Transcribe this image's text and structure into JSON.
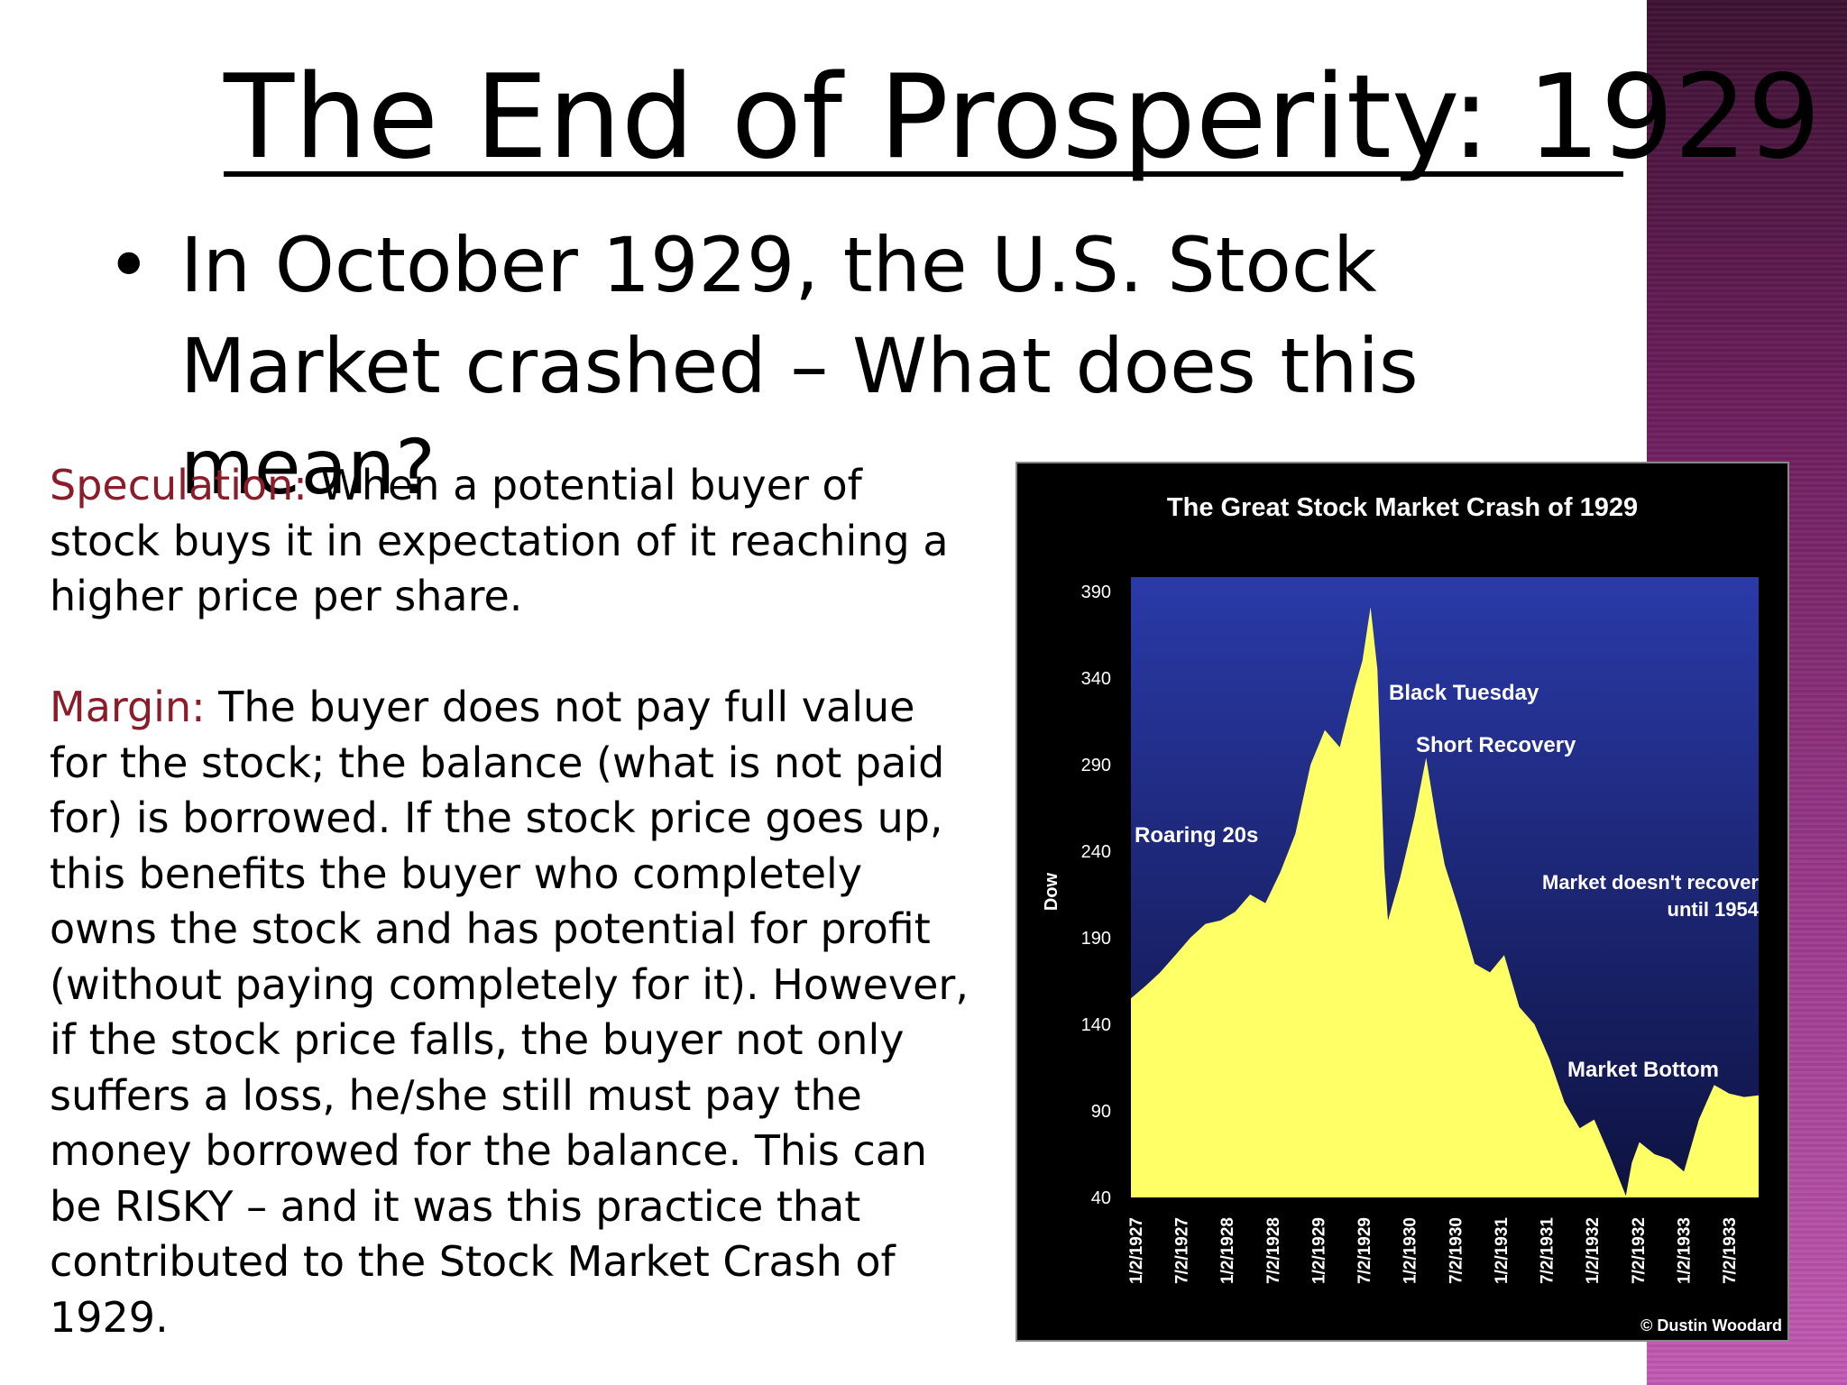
{
  "slide": {
    "title": "The End of Prosperity: 1929",
    "bullet_marker": "•",
    "bullet_text": "In October 1929, the U.S. Stock Market crashed – What does this mean?"
  },
  "definitions": {
    "speculation_term": "Speculation:",
    "speculation_text": " When a potential buyer of stock buys it in expectation of it reaching a higher price per share.",
    "margin_term": "Margin:",
    "margin_text": " The buyer does not pay full value for the stock; the balance (what is not paid for) is borrowed.  If the stock price goes up, this benefits the buyer who completely owns the stock and has potential for profit (without paying completely for it).  However, if the stock price falls, the buyer not only suffers a loss, he/she still must pay the money borrowed for the balance.  This can be RISKY – and it was this practice that contributed to the Stock Market Crash of 1929."
  },
  "colors": {
    "term": "#8b1c2a",
    "chart_background": "#000000",
    "plot_top": "#2a3aa8",
    "plot_bottom": "#0e1240",
    "area_fill": "#ffff66",
    "side_band": "#8a2f7a"
  },
  "chart_data": {
    "type": "area",
    "title": "The Great Stock Market Crash of 1929",
    "ylabel": "Dow",
    "xlabel": "",
    "ylim": [
      40,
      390
    ],
    "y_ticks": [
      390,
      340,
      290,
      240,
      190,
      140,
      90,
      40
    ],
    "x_tick_labels": [
      "1/2/1927",
      "7/2/1927",
      "1/2/1928",
      "7/2/1928",
      "1/2/1929",
      "7/2/1929",
      "1/2/1930",
      "7/2/1930",
      "1/2/1931",
      "7/2/1931",
      "1/2/1932",
      "7/2/1932",
      "1/2/1933",
      "7/2/1933"
    ],
    "grid": false,
    "legend": "none",
    "series": [
      {
        "x": [
          "1927-01-02",
          "1927-03-01",
          "1927-05-01",
          "1927-07-02",
          "1927-09-01",
          "1927-11-01",
          "1928-01-02",
          "1928-03-01",
          "1928-05-01",
          "1928-07-02",
          "1928-09-01",
          "1928-11-01",
          "1929-01-02",
          "1929-03-01",
          "1929-05-01",
          "1929-07-02",
          "1929-08-01",
          "1929-09-03",
          "1929-10-01",
          "1929-10-29",
          "1929-11-13",
          "1930-01-02",
          "1930-03-01",
          "1930-04-17",
          "1930-06-01",
          "1930-07-02",
          "1930-09-01",
          "1930-11-01",
          "1931-01-02",
          "1931-03-01",
          "1931-05-01",
          "1931-07-02",
          "1931-09-01",
          "1931-11-01",
          "1932-01-02",
          "1932-03-01",
          "1932-05-01",
          "1932-07-08",
          "1932-08-01",
          "1932-09-01",
          "1932-11-01",
          "1933-01-02",
          "1933-03-01",
          "1933-05-01",
          "1933-07-02",
          "1933-09-01",
          "1933-11-01",
          "1933-12-30"
        ],
        "values": [
          155,
          162,
          170,
          180,
          190,
          198,
          200,
          205,
          215,
          210,
          228,
          250,
          290,
          310,
          300,
          335,
          350,
          381,
          345,
          230,
          200,
          225,
          260,
          294,
          255,
          232,
          205,
          175,
          170,
          180,
          150,
          140,
          120,
          95,
          80,
          85,
          65,
          41,
          60,
          72,
          65,
          62,
          55,
          85,
          105,
          100,
          98,
          99
        ]
      }
    ],
    "annotations": [
      "Roaring 20s",
      "Black Tuesday",
      "Short Recovery",
      "Market doesn't recover until 1954",
      "Market Bottom"
    ],
    "credit": "© Dustin Woodard"
  }
}
